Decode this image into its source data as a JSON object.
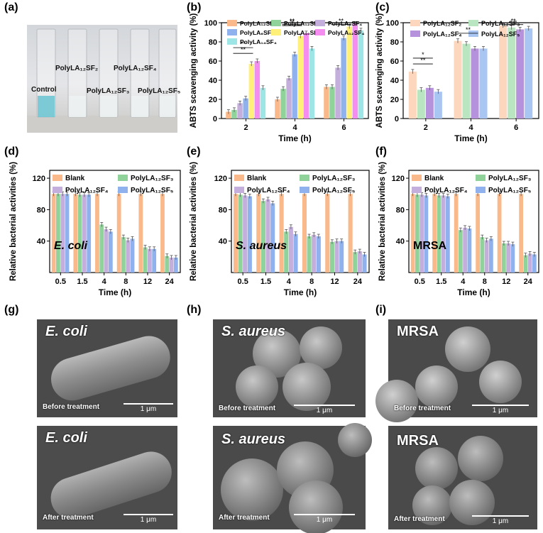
{
  "panel_labels": {
    "a": "(a)",
    "b": "(b)",
    "c": "(c)",
    "d": "(d)",
    "e": "(e)",
    "f": "(f)",
    "g": "(g)",
    "h": "(h)",
    "i": "(i)"
  },
  "photo": {
    "labels": {
      "control": "Control",
      "sf2": "PolyLA₁₂SF₂",
      "sf3": "PolyLA₁₂SF₃",
      "sf4": "PolyLA₁₂SF₄",
      "sf5": "PolyLA₁₂SF₅"
    }
  },
  "colors": {
    "orange": "#f9b98a",
    "green": "#8fd39a",
    "lavender": "#c3aedc",
    "blue": "#8fb1ee",
    "yellow": "#fff07a",
    "pink": "#f58cf0",
    "cyan": "#9ee5e5",
    "orange_light": "#fcd7bd",
    "green_light": "#b9e6c0",
    "purple": "#b692dd",
    "blue_light": "#a9c5f2"
  },
  "chart_data": [
    {
      "id": "b",
      "type": "bar",
      "ylabel": "ABTS scavenging activity (%)",
      "xlabel": "Time (h)",
      "categories": [
        "2",
        "4",
        "6"
      ],
      "ylim": [
        0,
        100
      ],
      "yticks": [
        0,
        20,
        40,
        60,
        80,
        100
      ],
      "series": [
        {
          "name": "PolyLA₁₂SF₂",
          "color": "orange",
          "values": [
            7,
            20,
            33
          ]
        },
        {
          "name": "PolyLA₁₂SF₄",
          "color": "green",
          "values": [
            9,
            31,
            33
          ]
        },
        {
          "name": "PolyLA₈SF₄",
          "color": "lavender",
          "values": [
            16,
            42,
            53
          ]
        },
        {
          "name": "PolyLA₆SF₄",
          "color": "blue",
          "values": [
            21,
            67,
            84
          ]
        },
        {
          "name": "PolyLA₁₀SF₄",
          "color": "yellow",
          "values": [
            57,
            86,
            96
          ]
        },
        {
          "name": "PolyLA₁₂SF₄",
          "color": "pink",
          "values": [
            60,
            89,
            99
          ]
        },
        {
          "name": "PolyLA₁₄SF₄",
          "color": "cyan",
          "values": [
            32,
            73,
            92
          ]
        }
      ],
      "legend_order": [
        0,
        1,
        2,
        3,
        4,
        5,
        6
      ],
      "annotations": [
        "**",
        "**",
        "**",
        "**",
        "**"
      ]
    },
    {
      "id": "c",
      "type": "bar",
      "ylabel": "ABTS scavenging activity (%)",
      "xlabel": "Time (h)",
      "categories": [
        "2",
        "4",
        "6"
      ],
      "ylim": [
        0,
        100
      ],
      "yticks": [
        0,
        20,
        40,
        60,
        80,
        100
      ],
      "series": [
        {
          "name": "PolyLA₁₂SF₂",
          "color": "orange_light",
          "values": [
            49,
            81,
            97
          ]
        },
        {
          "name": "PolyLA₁₂SF₃",
          "color": "green_light",
          "values": [
            30,
            78,
            95
          ]
        },
        {
          "name": "PolyLA₁₂SF₄",
          "color": "purple",
          "values": [
            32,
            73,
            93
          ]
        },
        {
          "name": "PolyLA₁₂SF₅",
          "color": "blue_light",
          "values": [
            28,
            73,
            94
          ]
        }
      ],
      "annotations": [
        "**",
        "**",
        "**",
        "*"
      ]
    },
    {
      "id": "d",
      "type": "bar",
      "ylabel": "Relative  bacterial activities (%)",
      "xlabel": "Time (h)",
      "organism": "E. coli",
      "categories": [
        "0.5",
        "1.5",
        "4",
        "8",
        "12",
        "24"
      ],
      "ylim": [
        0,
        130
      ],
      "yticks": [
        40,
        80,
        120
      ],
      "series": [
        {
          "name": "Blank",
          "color": "orange",
          "values": [
            100,
            100,
            100,
            100,
            100,
            100
          ]
        },
        {
          "name": "PolyLA₁₂SF₃",
          "color": "green",
          "values": [
            100,
            99,
            61,
            45,
            32,
            21
          ]
        },
        {
          "name": "PolyLA₁₂SF₄",
          "color": "lavender",
          "values": [
            100,
            99,
            55,
            41,
            30,
            19
          ]
        },
        {
          "name": "PolyLA₁₂SF₅",
          "color": "blue",
          "values": [
            100,
            99,
            52,
            43,
            30,
            19
          ]
        }
      ]
    },
    {
      "id": "e",
      "type": "bar",
      "ylabel": "Relative  bacterial activities (%)",
      "xlabel": "Time (h)",
      "organism": "S. aureus",
      "categories": [
        "0.5",
        "1.5",
        "4",
        "8",
        "12",
        "24"
      ],
      "ylim": [
        0,
        130
      ],
      "yticks": [
        40,
        80,
        120
      ],
      "series": [
        {
          "name": "Blank",
          "color": "orange",
          "values": [
            100,
            100,
            100,
            100,
            100,
            100
          ]
        },
        {
          "name": "PolyLA₁₂SF₃",
          "color": "green",
          "values": [
            99,
            91,
            52,
            46,
            39,
            26
          ]
        },
        {
          "name": "PolyLA₁₂SF₄",
          "color": "lavender",
          "values": [
            98,
            93,
            58,
            48,
            40,
            27
          ]
        },
        {
          "name": "PolyLA₁₂SF₅",
          "color": "blue",
          "values": [
            97,
            88,
            49,
            46,
            40,
            23
          ]
        }
      ]
    },
    {
      "id": "f",
      "type": "bar",
      "ylabel": "Relative  bacterial activities (%)",
      "xlabel": "Time (h)",
      "organism": "MRSA",
      "categories": [
        "0.5",
        "1.5",
        "4",
        "8",
        "12",
        "24"
      ],
      "ylim": [
        0,
        130
      ],
      "yticks": [
        40,
        80,
        120
      ],
      "series": [
        {
          "name": "Blank",
          "color": "orange",
          "values": [
            100,
            100,
            100,
            100,
            100,
            100
          ]
        },
        {
          "name": "PolyLA₁₂SF₃",
          "color": "green",
          "values": [
            99,
            98,
            54,
            45,
            37,
            22
          ]
        },
        {
          "name": "PolyLA₁₂SF₄",
          "color": "lavender",
          "values": [
            99,
            98,
            57,
            41,
            37,
            24
          ]
        },
        {
          "name": "PolyLA₁₂SF₅",
          "color": "blue",
          "values": [
            98,
            97,
            56,
            43,
            36,
            23
          ]
        }
      ]
    }
  ],
  "sem": {
    "g_top": {
      "title": "E. coli",
      "caption": "Before treatment",
      "scale": "1 μm"
    },
    "g_bot": {
      "title": "E. coli",
      "caption": "After treatment",
      "scale": "1 μm"
    },
    "h_top": {
      "title": "S. aureus",
      "caption": "Before treatment",
      "scale": "1 μm"
    },
    "h_bot": {
      "title": "S. aureus",
      "caption": "After treatment",
      "scale": "1 μm"
    },
    "i_top": {
      "title": "MRSA",
      "caption": "Before treatment",
      "scale": "1 μm"
    },
    "i_bot": {
      "title": "MRSA",
      "caption": "After treatment",
      "scale": "1 μm"
    }
  }
}
